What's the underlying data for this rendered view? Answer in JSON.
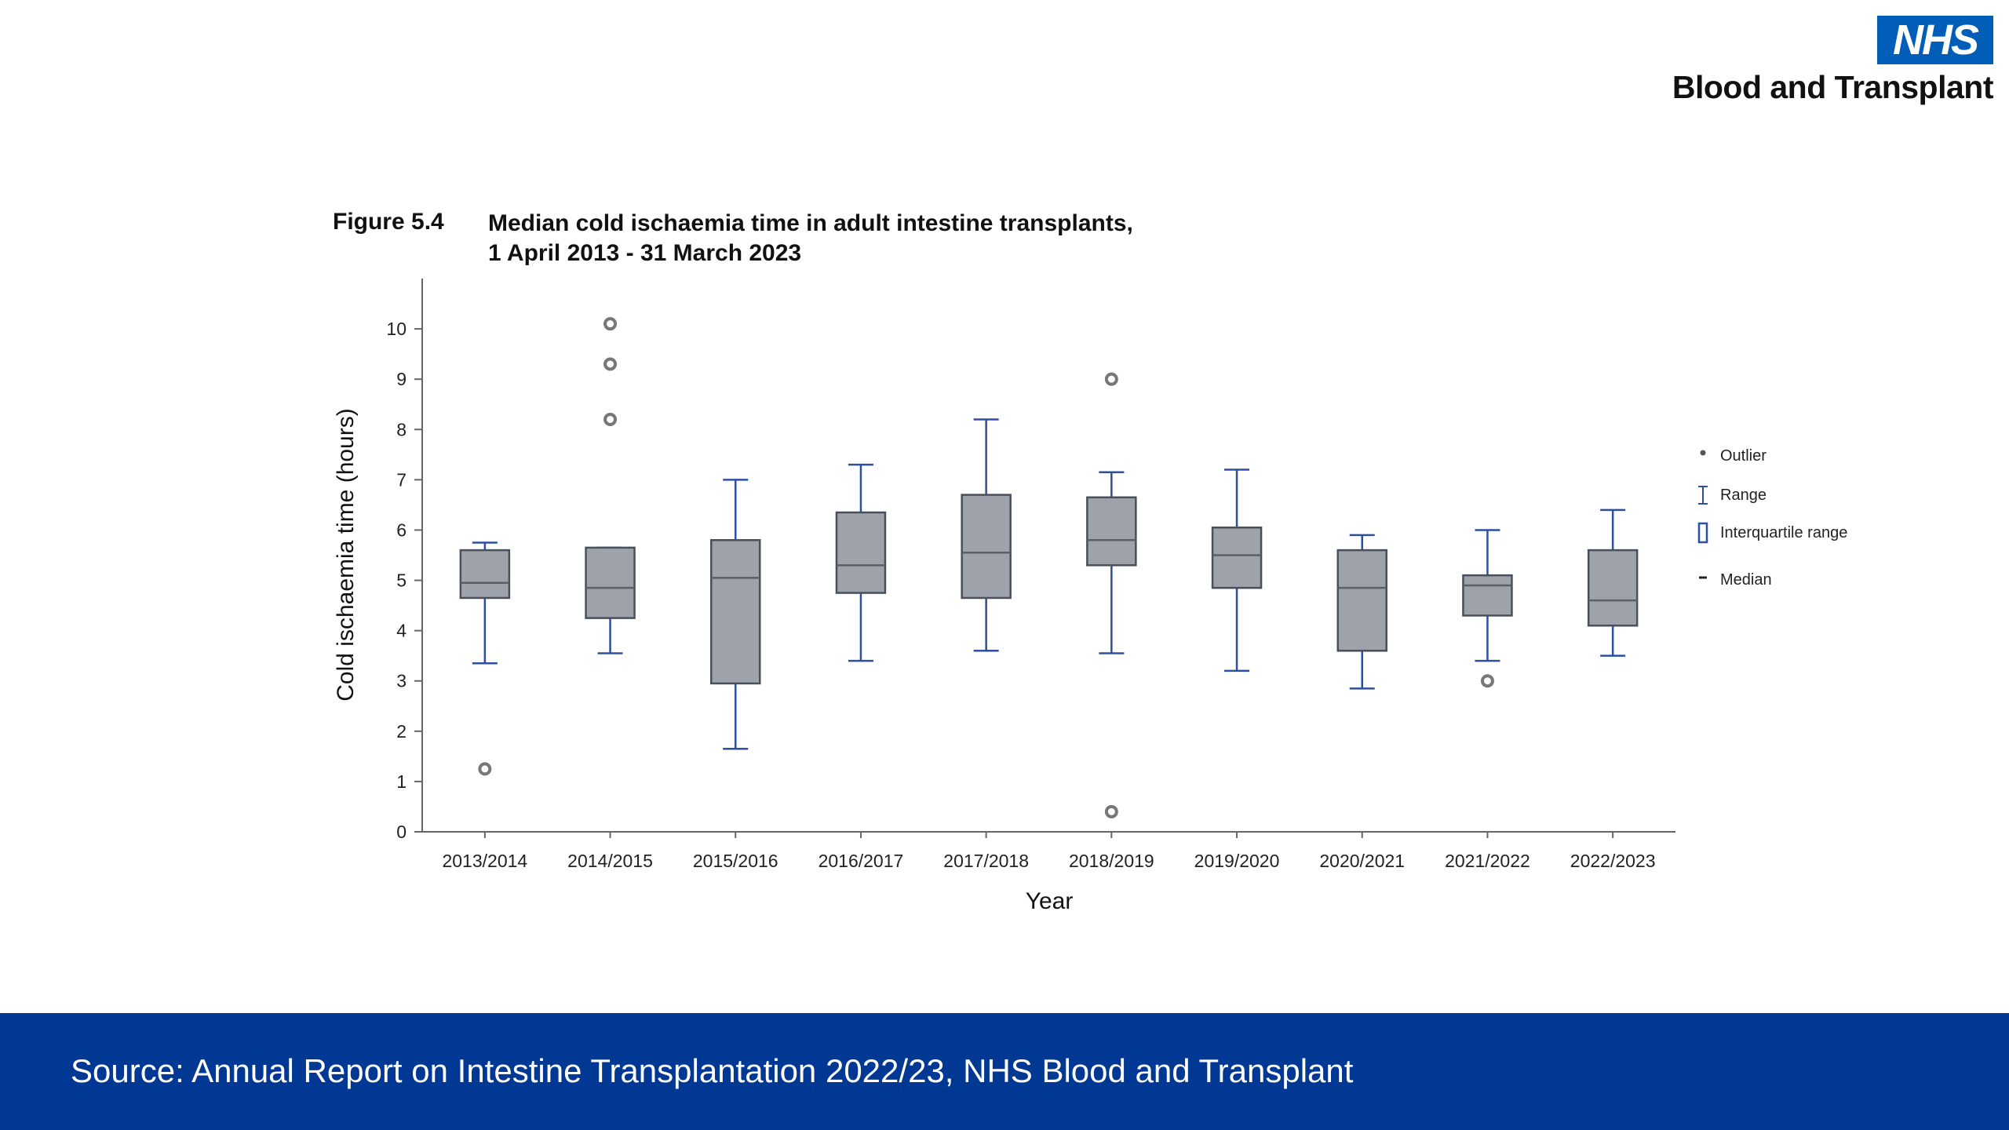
{
  "logo": {
    "mark": "NHS",
    "text": "Blood and Transplant"
  },
  "figure": {
    "number": "Figure 5.4",
    "title_line1": "Median cold ischaemia time in adult intestine transplants,",
    "title_line2": "1 April 2013 - 31 March 2023"
  },
  "chart_data": {
    "type": "boxplot",
    "xlabel": "Year",
    "ylabel": "Cold ischaemia time (hours)",
    "ylim": [
      0,
      11
    ],
    "yticks": [
      0,
      1,
      2,
      3,
      4,
      5,
      6,
      7,
      8,
      9,
      10
    ],
    "grid": false,
    "legend_position": "right",
    "colors": {
      "box": "#9ea2ab",
      "whisker": "#2e4f9e",
      "outlier": "#777777"
    },
    "categories": [
      "2013/2014",
      "2014/2015",
      "2015/2016",
      "2016/2017",
      "2017/2018",
      "2018/2019",
      "2019/2020",
      "2020/2021",
      "2021/2022",
      "2022/2023"
    ],
    "boxes": [
      {
        "min": 3.35,
        "q1": 4.65,
        "median": 4.95,
        "q3": 5.6,
        "max": 5.75,
        "outliers": [
          1.25
        ]
      },
      {
        "min": 3.55,
        "q1": 4.25,
        "median": 4.85,
        "q3": 5.65,
        "max": 5.65,
        "outliers": [
          8.2,
          9.3,
          10.1
        ]
      },
      {
        "min": 1.65,
        "q1": 2.95,
        "median": 5.05,
        "q3": 5.8,
        "max": 7.0,
        "outliers": []
      },
      {
        "min": 3.4,
        "q1": 4.75,
        "median": 5.3,
        "q3": 6.35,
        "max": 7.3,
        "outliers": []
      },
      {
        "min": 3.6,
        "q1": 4.65,
        "median": 5.55,
        "q3": 6.7,
        "max": 8.2,
        "outliers": []
      },
      {
        "min": 3.55,
        "q1": 5.3,
        "median": 5.8,
        "q3": 6.65,
        "max": 7.15,
        "outliers": [
          0.4,
          9.0
        ]
      },
      {
        "min": 3.2,
        "q1": 4.85,
        "median": 5.5,
        "q3": 6.05,
        "max": 7.2,
        "outliers": []
      },
      {
        "min": 2.85,
        "q1": 3.6,
        "median": 4.85,
        "q3": 5.6,
        "max": 5.9,
        "outliers": []
      },
      {
        "min": 3.4,
        "q1": 4.3,
        "median": 4.9,
        "q3": 5.1,
        "max": 6.0,
        "outliers": [
          3.0
        ]
      },
      {
        "min": 3.5,
        "q1": 4.1,
        "median": 4.6,
        "q3": 5.6,
        "max": 6.4,
        "outliers": []
      }
    ],
    "legend": [
      "Outlier",
      "Range",
      "Interquartile range",
      "Median"
    ]
  },
  "footer": {
    "source": "Source: Annual Report on Intestine Transplantation 2022/23, NHS Blood and Transplant"
  }
}
